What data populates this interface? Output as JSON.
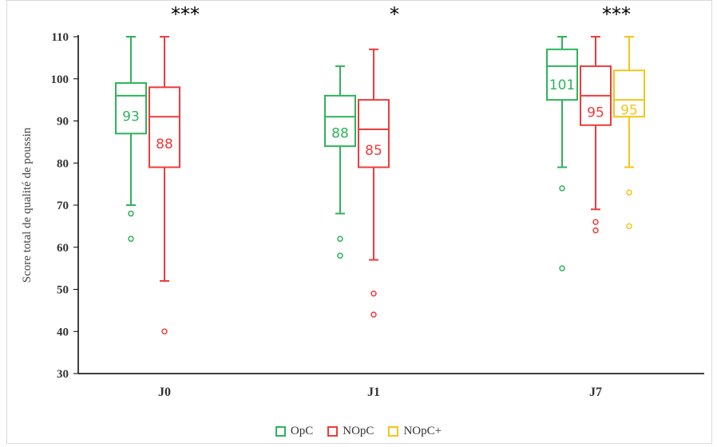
{
  "chart_data": {
    "type": "box",
    "ylabel": "Score total de qualité de poussin",
    "ylim": [
      30,
      110
    ],
    "yticks": [
      30,
      40,
      50,
      60,
      70,
      80,
      90,
      100,
      110
    ],
    "categories": [
      "J0",
      "J1",
      "J7"
    ],
    "significance": [
      "***",
      "*",
      "***"
    ],
    "series": [
      {
        "name": "OpC",
        "color": "#2db35a",
        "boxes": [
          {
            "category": "J0",
            "min": 70,
            "q1": 87,
            "median": 96,
            "q3": 99,
            "max": 110,
            "mean_label": "93",
            "outliers": [
              68,
              62
            ]
          },
          {
            "category": "J1",
            "min": 68,
            "q1": 84,
            "median": 91,
            "q3": 96,
            "max": 103,
            "mean_label": "88",
            "outliers": [
              62,
              58
            ]
          },
          {
            "category": "J7",
            "min": 79,
            "q1": 95,
            "median": 103,
            "q3": 107,
            "max": 110,
            "mean_label": "101",
            "outliers": [
              74,
              55
            ]
          }
        ]
      },
      {
        "name": "NOpC",
        "color": "#ee3b3b",
        "boxes": [
          {
            "category": "J0",
            "min": 52,
            "q1": 79,
            "median": 91,
            "q3": 98,
            "max": 110,
            "mean_label": "88",
            "outliers": [
              40
            ]
          },
          {
            "category": "J1",
            "min": 57,
            "q1": 79,
            "median": 88,
            "q3": 95,
            "max": 107,
            "mean_label": "85",
            "outliers": [
              49,
              44
            ]
          },
          {
            "category": "J7",
            "min": 69,
            "q1": 89,
            "median": 96,
            "q3": 103,
            "max": 110,
            "mean_label": "95",
            "outliers": [
              66,
              64
            ]
          }
        ]
      },
      {
        "name": "NOpC+",
        "color": "#f5c518",
        "boxes": [
          {
            "category": "J7",
            "min": 79,
            "q1": 91,
            "median": 95,
            "q3": 102,
            "max": 110,
            "mean_label": "95",
            "outliers": [
              73,
              65
            ]
          }
        ]
      }
    ],
    "legend_position": "bottom",
    "grid": false
  }
}
